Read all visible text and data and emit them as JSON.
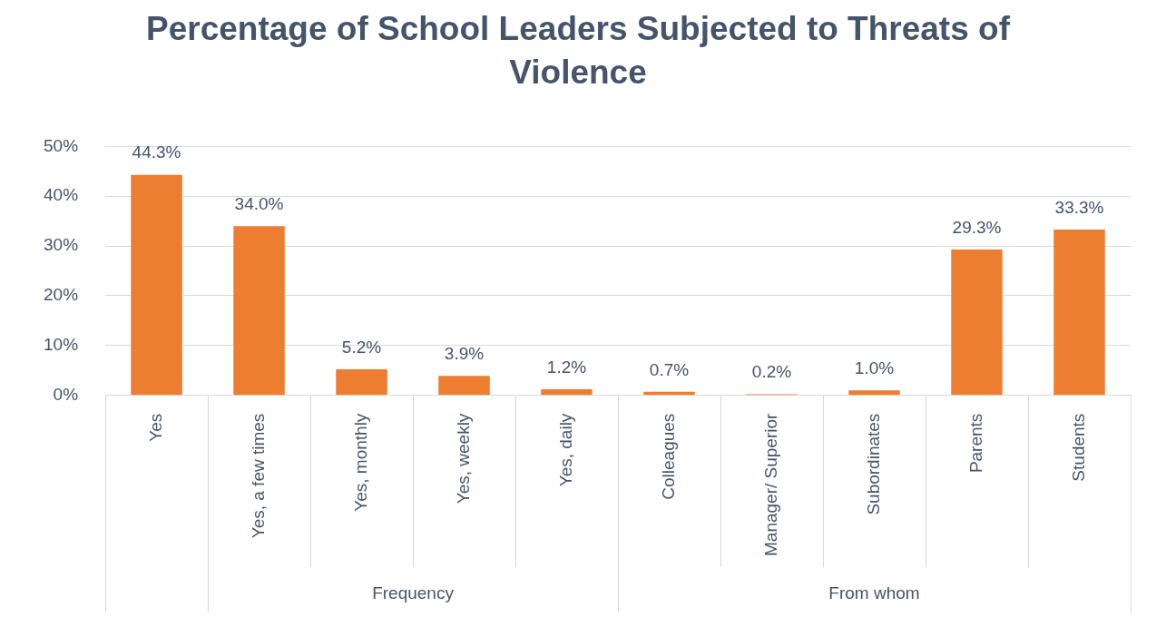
{
  "chart_data": {
    "type": "bar",
    "title": "Percentage of School Leaders Subjected to Threats of Violence",
    "categories": [
      "Yes",
      "Yes, a few times",
      "Yes, monthly",
      "Yes, weekly",
      "Yes, daily",
      "Colleagues",
      "Manager/ Superior",
      "Subordinates",
      "Parents",
      "Students"
    ],
    "values": [
      44.3,
      34.0,
      5.2,
      3.9,
      1.2,
      0.7,
      0.2,
      1.0,
      29.3,
      33.3
    ],
    "value_labels": [
      "44.3%",
      "34.0%",
      "5.2%",
      "3.9%",
      "1.2%",
      "0.7%",
      "0.2%",
      "1.0%",
      "29.3%",
      "33.3%"
    ],
    "color": "#ed7d31",
    "ylim": [
      0,
      50
    ],
    "yticks": [
      {
        "value": 0,
        "label": "0%"
      },
      {
        "value": 10,
        "label": "10%"
      },
      {
        "value": 20,
        "label": "20%"
      },
      {
        "value": 30,
        "label": "30%"
      },
      {
        "value": 40,
        "label": "40%"
      },
      {
        "value": 50,
        "label": "50%"
      }
    ],
    "annotations": [
      "Frequency",
      "From whom"
    ],
    "grid": "y",
    "legend": false
  }
}
